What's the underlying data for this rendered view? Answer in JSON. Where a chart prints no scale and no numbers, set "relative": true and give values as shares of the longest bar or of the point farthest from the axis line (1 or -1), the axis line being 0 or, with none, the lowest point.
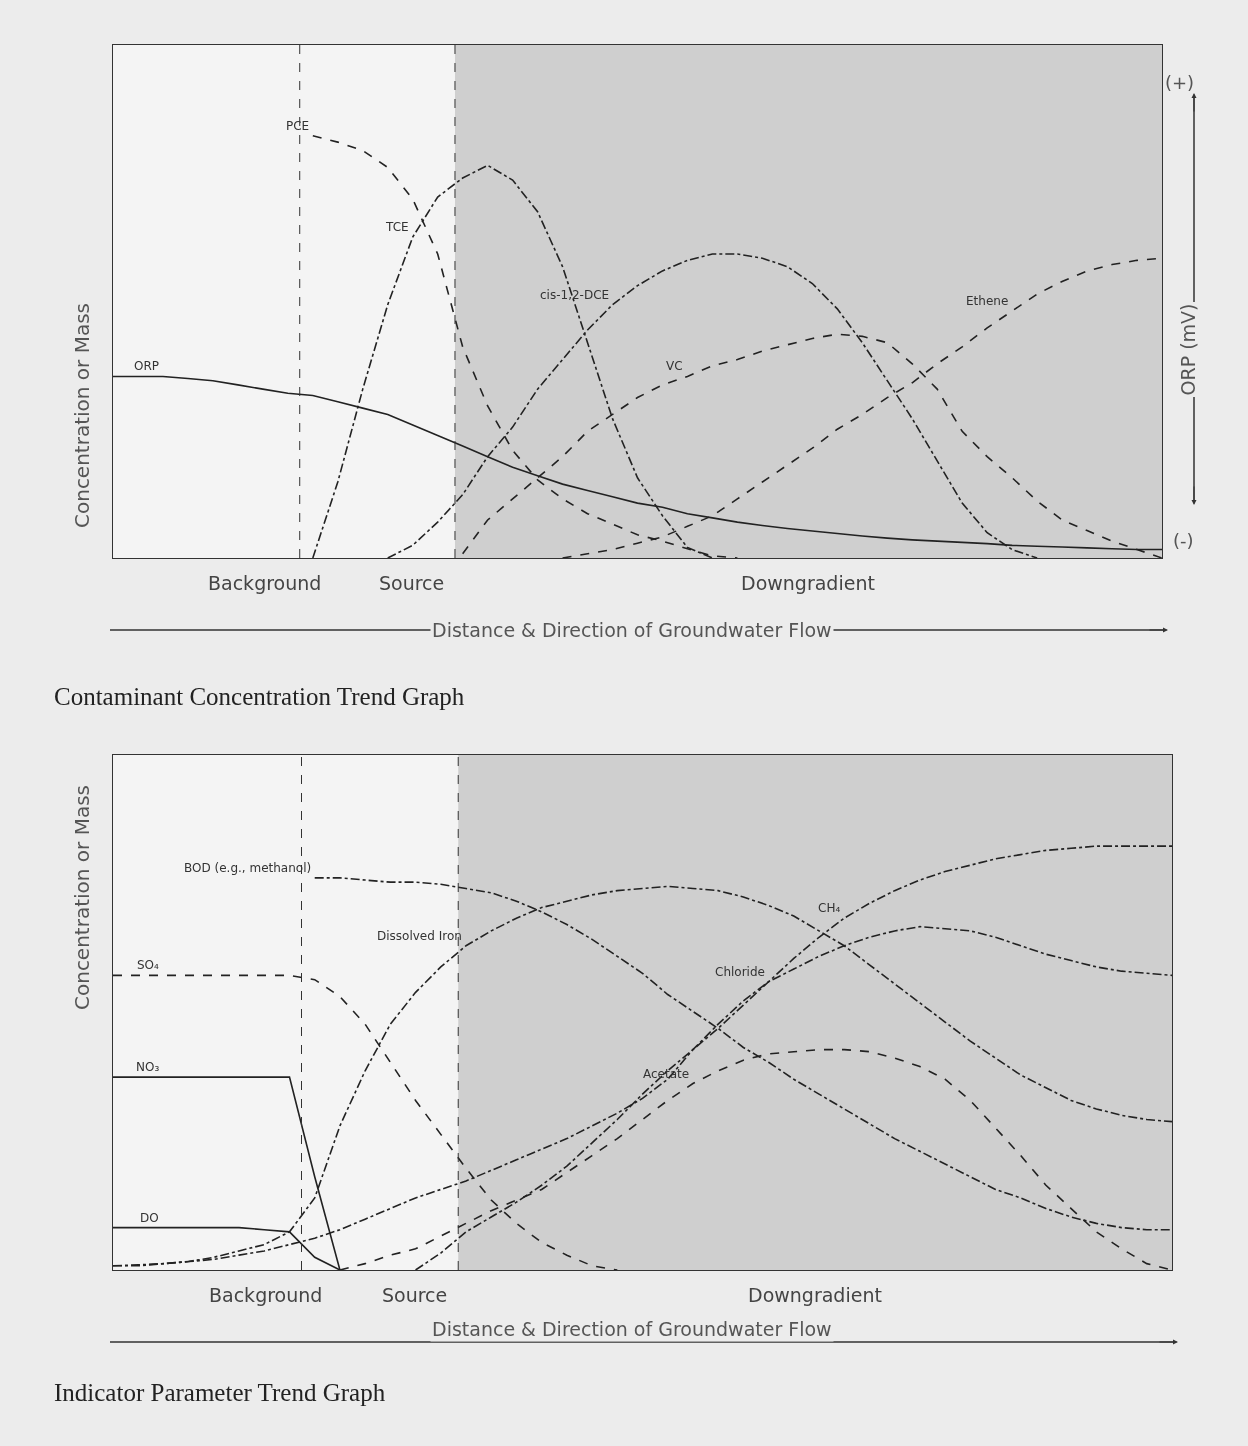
{
  "chart_data": [
    {
      "type": "line",
      "relative": true,
      "title": "Contaminant Concentration Trend Graph",
      "xlabel": "Distance & Direction of Groundwater Flow",
      "ylabel": "Concentration or Mass",
      "y2label": "ORP (mV)",
      "legend": false,
      "grid": false,
      "categories": [
        null,
        null,
        null,
        null,
        null,
        null,
        null,
        null,
        null,
        null,
        null,
        null,
        null,
        null,
        null,
        null,
        null,
        null,
        null,
        null,
        null,
        null,
        null,
        null,
        null,
        null,
        null,
        null,
        null,
        null,
        null,
        null,
        null,
        null,
        null,
        null,
        null,
        null,
        null,
        null,
        null,
        null,
        null
      ],
      "annotations": [
        "Background",
        "Source",
        "Downgradient",
        "(+)",
        "(-)"
      ],
      "series": [
        {
          "name": "ORP",
          "color": "#222222",
          "line_style": "solid",
          "values": [
            0.43,
            0.43,
            0.43,
            0.425,
            0.42,
            0.41,
            0.4,
            0.39,
            0.385,
            0.37,
            0.355,
            0.34,
            0.315,
            0.29,
            0.265,
            0.24,
            0.215,
            0.195,
            0.175,
            0.16,
            0.145,
            0.13,
            0.12,
            0.105,
            0.095,
            0.085,
            0.077,
            0.07,
            0.064,
            0.058,
            0.052,
            0.047,
            0.043,
            0.04,
            0.037,
            0.034,
            0.03,
            0.028,
            0.026,
            0.024,
            0.022,
            0.02,
            0.02
          ]
        },
        {
          "name": "PCE",
          "color": "#222222",
          "line_style": "dashed",
          "values": [
            null,
            null,
            null,
            null,
            null,
            null,
            null,
            null,
            1,
            0.985,
            0.965,
            0.925,
            0.85,
            0.72,
            0.5,
            0.36,
            0.255,
            0.185,
            0.14,
            0.105,
            0.08,
            0.055,
            0.04,
            0.022,
            0.005,
            0,
            null,
            null,
            null,
            null,
            null,
            null,
            null,
            null,
            null,
            null,
            null,
            null,
            null,
            null,
            null,
            null,
            null
          ]
        },
        {
          "name": "TCE",
          "color": "#222222",
          "line_style": "dotted",
          "values": [
            null,
            null,
            null,
            null,
            null,
            null,
            null,
            null,
            0,
            0.18,
            0.4,
            0.6,
            0.76,
            0.855,
            0.9,
            0.93,
            0.895,
            0.82,
            0.69,
            0.51,
            0.33,
            0.19,
            0.1,
            0.025,
            0,
            null,
            null,
            null,
            null,
            null,
            null,
            null,
            null,
            null,
            null,
            null,
            null,
            null,
            null,
            null,
            null,
            null,
            null
          ]
        },
        {
          "name": "cis-1,2-DCE",
          "color": "#222222",
          "line_style": "dotted",
          "values": [
            null,
            null,
            null,
            null,
            null,
            null,
            null,
            null,
            null,
            null,
            null,
            0,
            0.03,
            0.085,
            0.15,
            0.24,
            0.31,
            0.4,
            0.47,
            0.54,
            0.6,
            0.645,
            0.68,
            0.705,
            0.72,
            0.72,
            0.71,
            0.69,
            0.65,
            0.59,
            0.51,
            0.42,
            0.33,
            0.23,
            0.13,
            0.06,
            0.02,
            0,
            null,
            null,
            null,
            null,
            null
          ]
        },
        {
          "name": "VC",
          "color": "#222222",
          "line_style": "dashed",
          "values": [
            null,
            null,
            null,
            null,
            null,
            null,
            null,
            null,
            null,
            null,
            null,
            null,
            null,
            null,
            0.01,
            0.09,
            0.14,
            0.19,
            0.24,
            0.3,
            0.34,
            0.38,
            0.41,
            0.43,
            0.455,
            0.47,
            0.49,
            0.505,
            0.52,
            0.53,
            0.525,
            0.51,
            0.46,
            0.4,
            0.3,
            0.24,
            0.19,
            0.135,
            0.09,
            0.065,
            0.04,
            0.02,
            0
          ]
        },
        {
          "name": "Ethene",
          "color": "#222222",
          "line_style": "dashed",
          "values": [
            null,
            null,
            null,
            null,
            null,
            null,
            null,
            null,
            null,
            null,
            null,
            null,
            null,
            null,
            null,
            null,
            null,
            null,
            0,
            0.01,
            0.02,
            0.035,
            0.05,
            0.075,
            0.1,
            0.14,
            0.18,
            0.22,
            0.26,
            0.305,
            0.34,
            0.38,
            0.415,
            0.46,
            0.5,
            0.545,
            0.585,
            0.625,
            0.655,
            0.68,
            0.695,
            0.705,
            0.71
          ]
        }
      ]
    },
    {
      "type": "line",
      "relative": true,
      "title": "Indicator Parameter Trend Graph",
      "xlabel": "Distance & Direction of Groundwater Flow",
      "ylabel": "Concentration or Mass",
      "legend": false,
      "grid": false,
      "categories": [
        null,
        null,
        null,
        null,
        null,
        null,
        null,
        null,
        null,
        null,
        null,
        null,
        null,
        null,
        null,
        null,
        null,
        null,
        null,
        null,
        null,
        null,
        null,
        null,
        null,
        null,
        null,
        null,
        null,
        null,
        null,
        null,
        null,
        null,
        null,
        null,
        null,
        null,
        null,
        null,
        null,
        null,
        null
      ],
      "annotations": [
        "Background",
        "Source",
        "Downgradient"
      ],
      "series": [
        {
          "name": "SO₄",
          "color": "#222222",
          "line_style": "dashed",
          "values": [
            0.695,
            0.695,
            0.695,
            0.695,
            0.695,
            0.695,
            0.695,
            0.695,
            0.685,
            0.645,
            0.58,
            0.49,
            0.4,
            0.32,
            0.24,
            0.165,
            0.11,
            0.065,
            0.035,
            0.01,
            0,
            null,
            null,
            null,
            null,
            null,
            null,
            null,
            null,
            null,
            null,
            null,
            null,
            null,
            null,
            null,
            null,
            null,
            null,
            null,
            null,
            null,
            null
          ]
        },
        {
          "name": "NO₃",
          "color": "#222222",
          "line_style": "solid",
          "values": [
            0.455,
            0.455,
            0.455,
            0.455,
            0.455,
            0.455,
            0.455,
            0.455,
            0.22,
            0,
            null,
            null,
            null,
            null,
            null,
            null,
            null,
            null,
            null,
            null,
            null,
            null,
            null,
            null,
            null,
            null,
            null,
            null,
            null,
            null,
            null,
            null,
            null,
            null,
            null,
            null,
            null,
            null,
            null,
            null,
            null,
            null,
            null
          ]
        },
        {
          "name": "DO",
          "color": "#222222",
          "line_style": "solid",
          "values": [
            0.1,
            0.1,
            0.1,
            0.1,
            0.1,
            0.1,
            0.095,
            0.09,
            0.03,
            0,
            null,
            null,
            null,
            null,
            null,
            null,
            null,
            null,
            null,
            null,
            null,
            null,
            null,
            null,
            null,
            null,
            null,
            null,
            null,
            null,
            null,
            null,
            null,
            null,
            null,
            null,
            null,
            null,
            null,
            null,
            null,
            null,
            null
          ]
        },
        {
          "name": "Dissolved Iron",
          "color": "#222222",
          "line_style": "dotted",
          "values": [
            0.01,
            0.01,
            0.015,
            0.02,
            0.03,
            0.045,
            0.06,
            0.09,
            0.17,
            0.34,
            0.47,
            0.58,
            0.655,
            0.715,
            0.765,
            0.8,
            0.83,
            0.855,
            0.87,
            0.885,
            0.895,
            0.9,
            0.905,
            0.9,
            0.895,
            0.88,
            0.86,
            0.835,
            0.8,
            0.765,
            0.72,
            0.675,
            0.63,
            0.585,
            0.54,
            0.5,
            0.46,
            0.43,
            0.4,
            0.38,
            0.365,
            0.355,
            0.35
          ]
        },
        {
          "name": "BOD (e.g., methanol)",
          "color": "#222222",
          "line_style": "dotted",
          "values": [
            null,
            null,
            null,
            null,
            null,
            null,
            null,
            null,
            0.925,
            0.925,
            0.92,
            0.915,
            0.915,
            0.91,
            0.9,
            0.89,
            0.87,
            0.845,
            0.815,
            0.78,
            0.74,
            0.7,
            0.65,
            0.61,
            0.57,
            0.525,
            0.49,
            0.45,
            0.415,
            0.38,
            0.345,
            0.31,
            0.28,
            0.25,
            0.22,
            0.19,
            0.17,
            0.145,
            0.125,
            0.11,
            0.1,
            0.095,
            0.095
          ]
        },
        {
          "name": "CH₄",
          "color": "#222222",
          "line_style": "dotted",
          "values": [
            null,
            null,
            null,
            null,
            null,
            null,
            null,
            null,
            null,
            null,
            null,
            null,
            0,
            0.04,
            0.09,
            0.125,
            0.16,
            0.2,
            0.245,
            0.3,
            0.355,
            0.415,
            0.47,
            0.52,
            0.57,
            0.625,
            0.68,
            0.735,
            0.785,
            0.83,
            0.865,
            0.895,
            0.92,
            0.94,
            0.955,
            0.97,
            0.98,
            0.99,
            0.995,
            1,
            1,
            1,
            1
          ]
        },
        {
          "name": "Chloride",
          "color": "#222222",
          "line_style": "dotted",
          "values": [
            0.01,
            0.012,
            0.015,
            0.02,
            0.025,
            0.035,
            0.045,
            0.06,
            0.075,
            0.095,
            0.12,
            0.145,
            0.17,
            0.19,
            0.21,
            0.235,
            0.26,
            0.285,
            0.31,
            0.34,
            0.37,
            0.405,
            0.45,
            0.52,
            0.58,
            0.635,
            0.68,
            0.71,
            0.74,
            0.765,
            0.785,
            0.8,
            0.81,
            0.805,
            0.8,
            0.785,
            0.765,
            0.745,
            0.73,
            0.715,
            0.705,
            0.7,
            0.695
          ]
        },
        {
          "name": "Acetate",
          "color": "#222222",
          "line_style": "dashed",
          "values": [
            null,
            null,
            null,
            null,
            null,
            null,
            null,
            null,
            null,
            0,
            0.015,
            0.035,
            0.05,
            0.08,
            0.11,
            0.14,
            0.165,
            0.19,
            0.23,
            0.27,
            0.31,
            0.355,
            0.4,
            0.44,
            0.47,
            0.495,
            0.51,
            0.515,
            0.52,
            0.52,
            0.515,
            0.5,
            0.48,
            0.45,
            0.4,
            0.335,
            0.27,
            0.2,
            0.145,
            0.09,
            0.05,
            0.015,
            0
          ]
        }
      ]
    }
  ]
}
